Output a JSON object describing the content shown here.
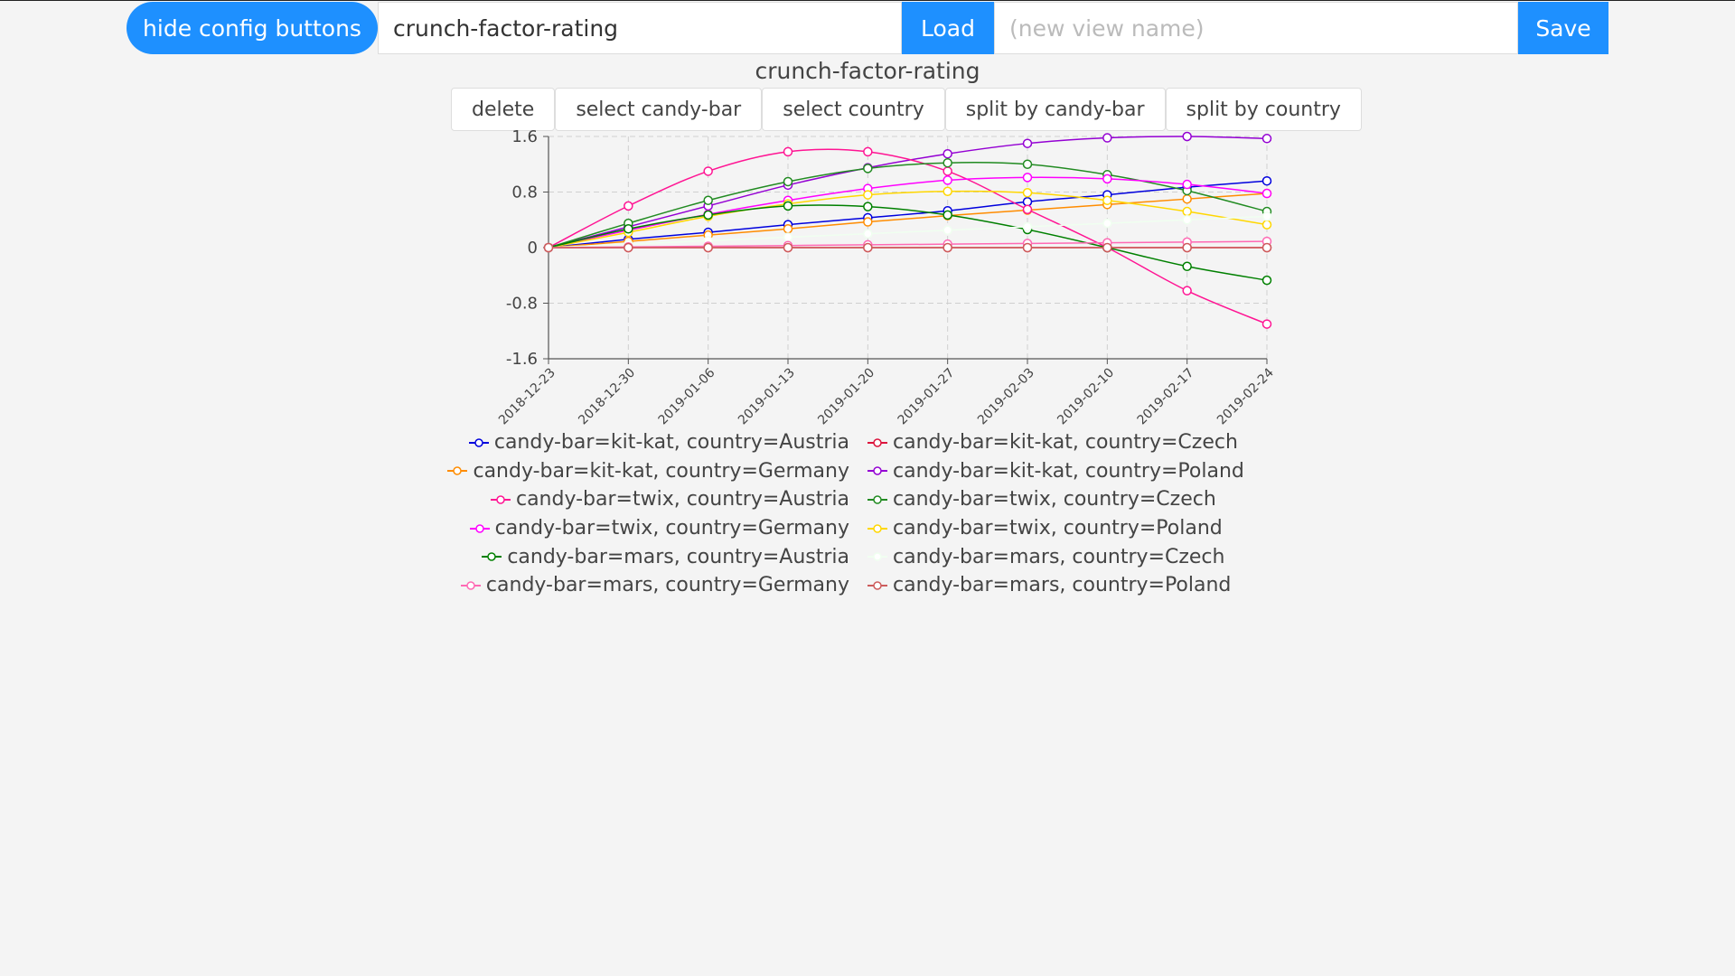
{
  "toolbar": {
    "hide_config_label": "hide config buttons",
    "view_select_value": "crunch-factor-rating",
    "load_label": "Load",
    "view_name_placeholder": "(new view name)",
    "save_label": "Save"
  },
  "view": {
    "title": "crunch-factor-rating",
    "buttons": [
      "delete",
      "select candy-bar",
      "select country",
      "split by candy-bar",
      "split by country"
    ]
  },
  "chart_data": {
    "type": "line",
    "title": "",
    "xlabel": "",
    "ylabel": "",
    "x": [
      "2018-12-23",
      "2018-12-30",
      "2019-01-06",
      "2019-01-13",
      "2019-01-20",
      "2019-01-27",
      "2019-02-03",
      "2019-02-10",
      "2019-02-17",
      "2019-02-24"
    ],
    "ylim": [
      -1.6,
      1.6
    ],
    "yticks": [
      "1.6",
      "0.8",
      "0",
      "-0.8",
      "-1.6"
    ],
    "grid": true,
    "legend_position": "bottom",
    "series": [
      {
        "name": "candy-bar=kit-kat, country=Austria",
        "color": "#0000dd",
        "values": [
          0,
          0.12,
          0.22,
          0.33,
          0.43,
          0.53,
          0.66,
          0.76,
          0.87,
          0.96
        ]
      },
      {
        "name": "candy-bar=kit-kat, country=Czech",
        "color": "#dc143c",
        "values": [
          0,
          0,
          0,
          0,
          0,
          0,
          0,
          0,
          0,
          0
        ]
      },
      {
        "name": "candy-bar=kit-kat, country=Germany",
        "color": "#ff8c00",
        "values": [
          0,
          0.09,
          0.18,
          0.27,
          0.37,
          0.46,
          0.54,
          0.62,
          0.7,
          0.78
        ]
      },
      {
        "name": "candy-bar=kit-kat, country=Poland",
        "color": "#9400d3",
        "values": [
          0,
          0.3,
          0.6,
          0.9,
          1.15,
          1.35,
          1.5,
          1.58,
          1.6,
          1.57
        ]
      },
      {
        "name": "candy-bar=twix, country=Austria",
        "color": "#ff1493",
        "values": [
          0,
          0.6,
          1.1,
          1.38,
          1.38,
          1.1,
          0.55,
          0,
          -0.62,
          -1.1
        ]
      },
      {
        "name": "candy-bar=twix, country=Czech",
        "color": "#228b22",
        "values": [
          0,
          0.35,
          0.68,
          0.95,
          1.14,
          1.22,
          1.2,
          1.05,
          0.82,
          0.52
        ]
      },
      {
        "name": "candy-bar=twix, country=Germany",
        "color": "#ff00ff",
        "values": [
          0,
          0.25,
          0.48,
          0.68,
          0.85,
          0.97,
          1.01,
          0.99,
          0.91,
          0.78
        ]
      },
      {
        "name": "candy-bar=twix, country=Poland",
        "color": "#ffd700",
        "values": [
          0,
          0.22,
          0.45,
          0.63,
          0.76,
          0.81,
          0.79,
          0.68,
          0.52,
          0.33
        ]
      },
      {
        "name": "candy-bar=mars, country=Austria",
        "color": "#008000",
        "values": [
          0,
          0.27,
          0.47,
          0.6,
          0.59,
          0.47,
          0.26,
          0,
          -0.27,
          -0.47
        ]
      },
      {
        "name": "candy-bar=mars, country=Czech",
        "color": "#f0fff0",
        "values": [
          0,
          0.05,
          0.1,
          0.15,
          0.2,
          0.25,
          0.3,
          0.35,
          0.4,
          0.45
        ]
      },
      {
        "name": "candy-bar=mars, country=Germany",
        "color": "#ff69b4",
        "values": [
          0,
          0.01,
          0.02,
          0.03,
          0.04,
          0.05,
          0.06,
          0.07,
          0.08,
          0.09
        ]
      },
      {
        "name": "candy-bar=mars, country=Poland",
        "color": "#cd5c5c",
        "values": [
          0,
          0,
          0,
          0,
          0,
          0,
          0,
          0,
          0,
          0
        ]
      }
    ]
  }
}
